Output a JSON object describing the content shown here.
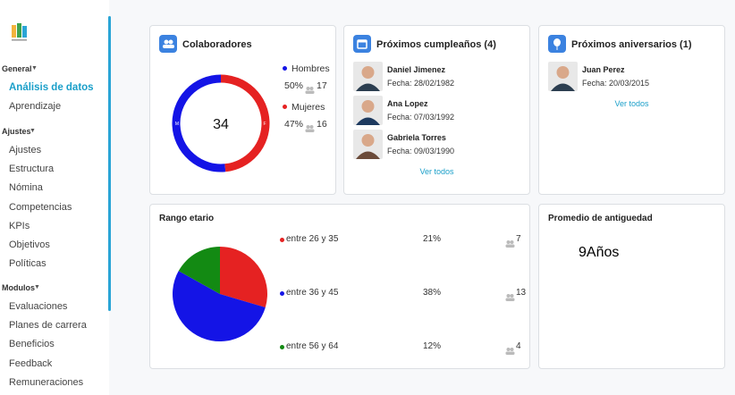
{
  "sidebar": {
    "sections": [
      {
        "title": "General",
        "items": [
          "Análisis de datos",
          "Aprendizaje"
        ]
      },
      {
        "title": "Ajustes",
        "items": [
          "Ajustes",
          "Estructura",
          "Nómina",
          "Competencias",
          "KPIs",
          "Objetivos",
          "Políticas"
        ]
      },
      {
        "title": "Modulos",
        "items": [
          "Evaluaciones",
          "Planes de carrera",
          "Beneficios",
          "Feedback",
          "Remuneraciones"
        ]
      }
    ],
    "active": "Análisis de datos"
  },
  "colaboradores": {
    "title": "Colaboradores",
    "total": 34,
    "ring_labels": [
      "M",
      "F"
    ],
    "series": [
      {
        "name": "Hombres",
        "color": "#1414e6",
        "value": 50,
        "value_label": "50%",
        "count": 17
      },
      {
        "name": "Mujeres",
        "color": "#e52222",
        "value": 47,
        "value_label": "47%",
        "count": 16
      }
    ]
  },
  "cumpleanos": {
    "title": "Próximos cumpleaños (4)",
    "people": [
      {
        "name": "Daniel Jimenez",
        "date": "Fecha: 28/02/1982"
      },
      {
        "name": "Ana Lopez",
        "date": "Fecha: 07/03/1992"
      },
      {
        "name": "Gabriela Torres",
        "date": "Fecha: 09/03/1990"
      }
    ],
    "link": "Ver todos"
  },
  "aniversarios": {
    "title": "Próximos aniversarios (1)",
    "people": [
      {
        "name": "Juan Perez",
        "date": "Fecha: 20/03/2015"
      }
    ],
    "link": "Ver todos"
  },
  "rango": {
    "title": "Rango etario",
    "chart_data": {
      "type": "pie",
      "categories": [
        "entre 26 y 35",
        "entre 36 y 45",
        "entre 56 y 64"
      ],
      "colors": [
        "#e52222",
        "#1414e6",
        "#138a13"
      ],
      "values": [
        21,
        38,
        12
      ],
      "value_labels": [
        "21%",
        "38%",
        "12%"
      ],
      "counts": [
        7,
        13,
        4
      ]
    }
  },
  "antiguedad": {
    "title": "Promedio de antiguedad",
    "value": 9,
    "unit": "Años",
    "color": "#f2a516"
  }
}
